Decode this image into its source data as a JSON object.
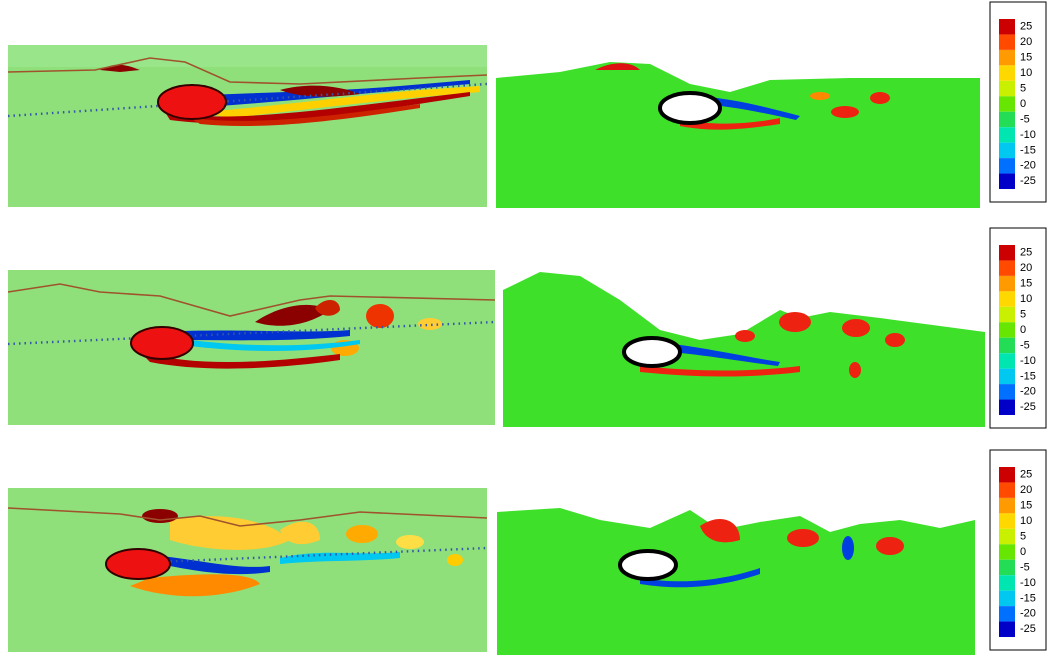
{
  "colorbars": [
    {
      "levels": [
        25,
        20,
        15,
        10,
        5,
        0,
        -5,
        -10,
        -15,
        -20,
        -25
      ],
      "colors": [
        "#cc0000",
        "#ff4a00",
        "#ff9a00",
        "#ffd800",
        "#c8f000",
        "#66e600",
        "#22dd55",
        "#00e6b0",
        "#00c8f0",
        "#0070ff",
        "#0000c8"
      ]
    },
    {
      "levels": [
        25,
        20,
        15,
        10,
        5,
        0,
        -5,
        -10,
        -15,
        -20,
        -25
      ],
      "colors": [
        "#cc0000",
        "#ff4a00",
        "#ff9a00",
        "#ffd800",
        "#c8f000",
        "#66e600",
        "#22dd55",
        "#00e6b0",
        "#00c8f0",
        "#0070ff",
        "#0000c8"
      ]
    },
    {
      "levels": [
        25,
        20,
        15,
        10,
        5,
        0,
        -5,
        -10,
        -15,
        -20,
        -25
      ],
      "colors": [
        "#cc0000",
        "#ff4a00",
        "#ff9a00",
        "#ffd800",
        "#c8f000",
        "#66e600",
        "#22dd55",
        "#00e6b0",
        "#00c8f0",
        "#0070ff",
        "#0000c8"
      ]
    }
  ]
}
